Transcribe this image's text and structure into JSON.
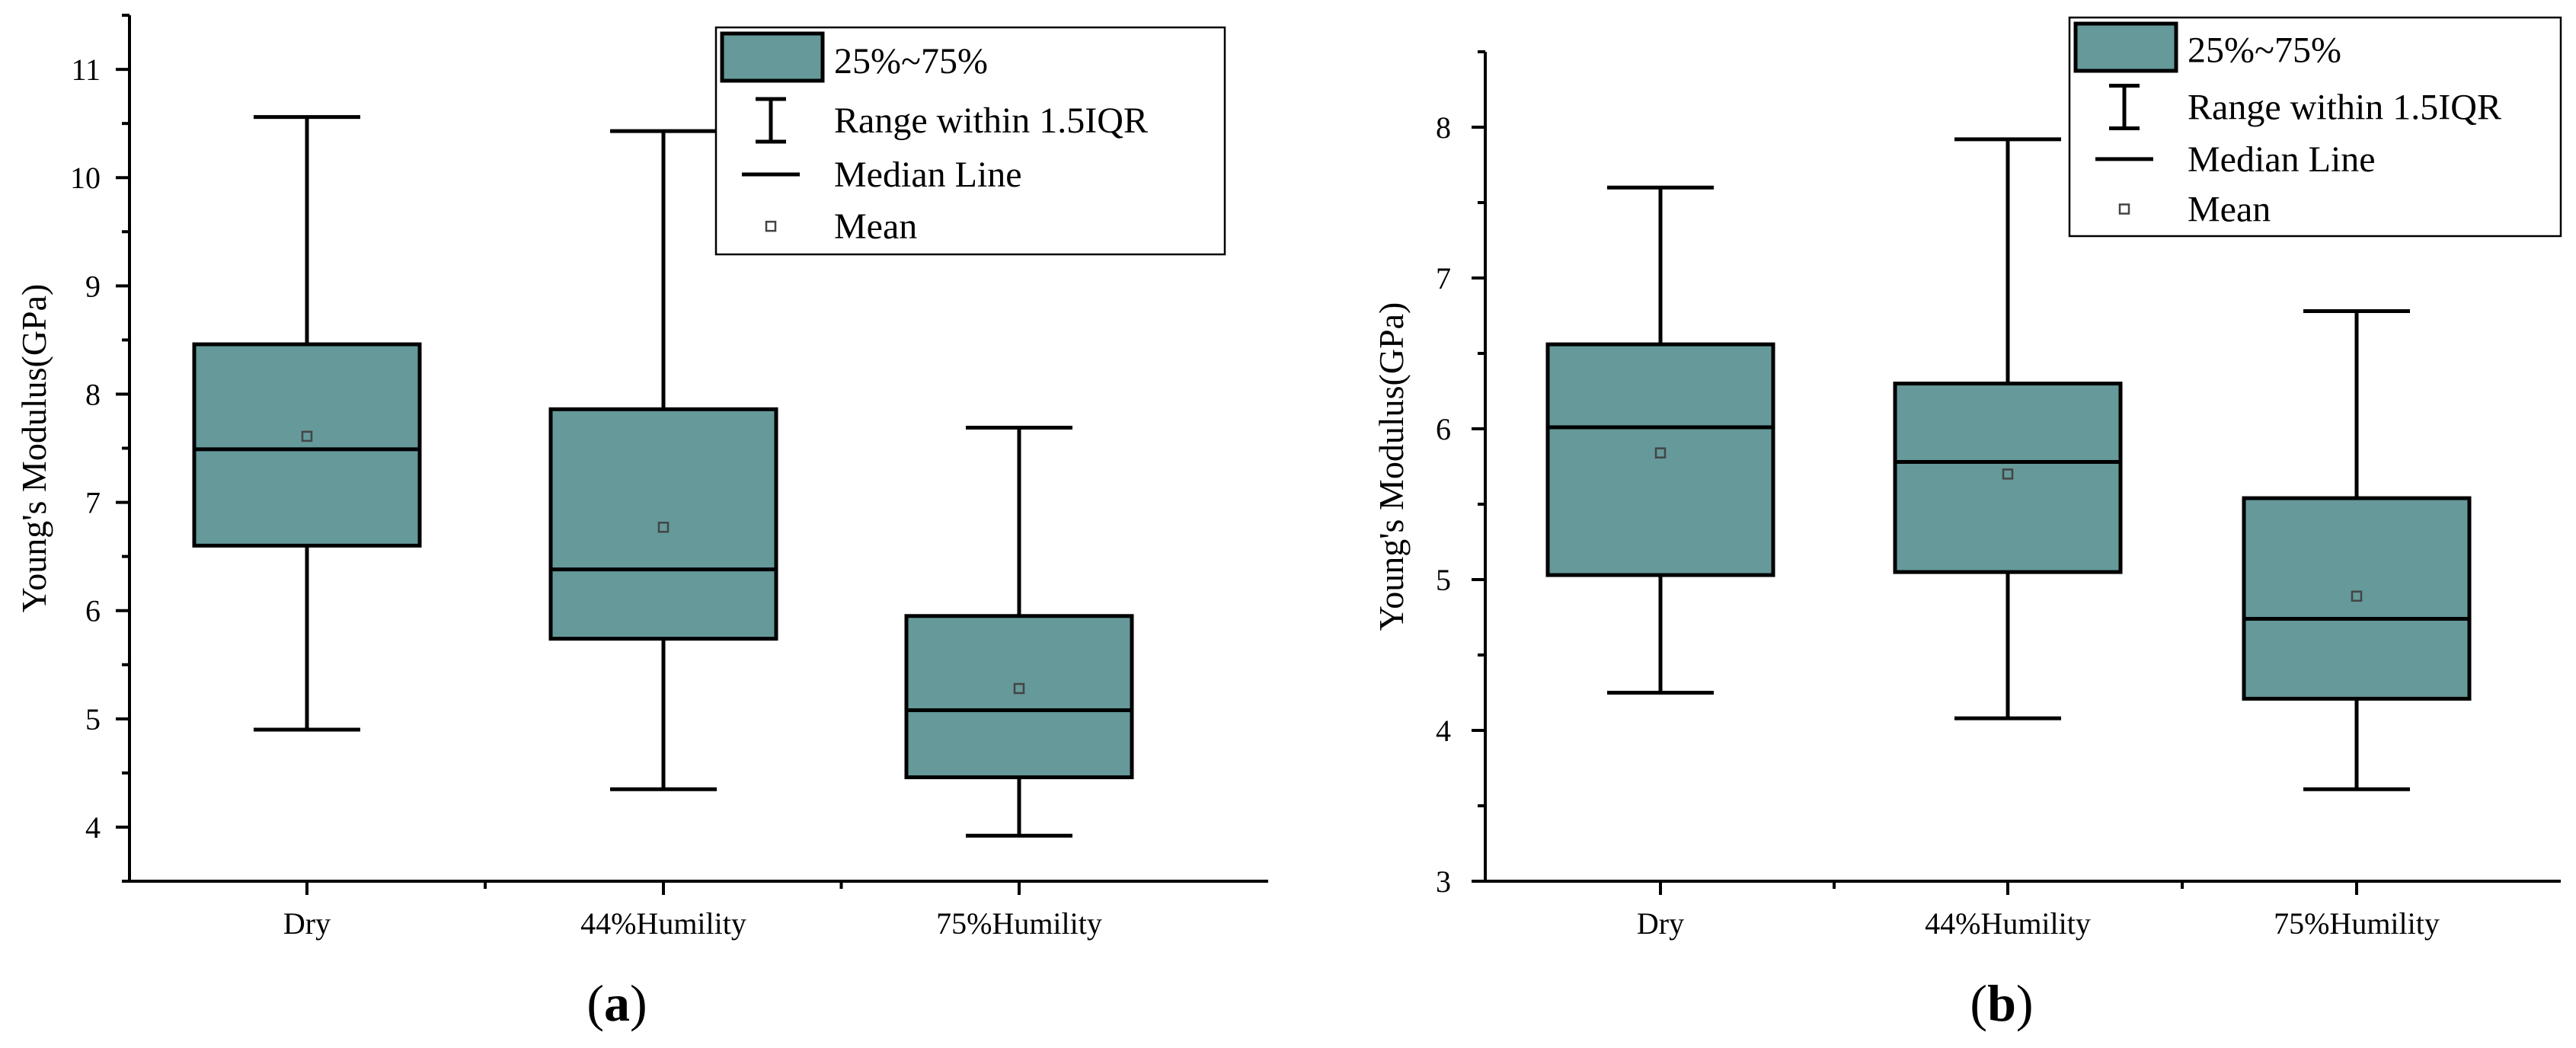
{
  "figure": {
    "box_color": "#65999A",
    "legend": {
      "box": "25%~75%",
      "range": "Range within 1.5IQR",
      "median": "Median Line",
      "mean": "Mean"
    }
  },
  "chart_data": [
    {
      "type": "box",
      "panel_label": {
        "open": "(",
        "letter": "a",
        "close": ")"
      },
      "ylabel": "Young's Modulus(GPa)",
      "xlabel": "",
      "ylim": [
        3.5,
        11.5
      ],
      "yticks": [
        4,
        5,
        6,
        7,
        8,
        9,
        10,
        11
      ],
      "categories": [
        "Dry",
        "44%Humility",
        "75%Humility"
      ],
      "boxes": [
        {
          "whisker_low": 4.9,
          "q1": 6.6,
          "median": 7.49,
          "q3": 8.46,
          "whisker_high": 10.56,
          "mean": 7.61
        },
        {
          "whisker_low": 4.35,
          "q1": 5.74,
          "median": 6.38,
          "q3": 7.86,
          "whisker_high": 10.43,
          "mean": 6.77
        },
        {
          "whisker_low": 3.92,
          "q1": 4.46,
          "median": 5.08,
          "q3": 5.95,
          "whisker_high": 7.69,
          "mean": 5.28
        }
      ],
      "legend_position": "top-right"
    },
    {
      "type": "box",
      "panel_label": {
        "open": "(",
        "letter": "b",
        "close": ")"
      },
      "ylabel": "Young's Modulus(GPa)",
      "xlabel": "",
      "ylim": [
        3,
        8.5
      ],
      "yticks": [
        3,
        4,
        5,
        6,
        7,
        8
      ],
      "categories": [
        "Dry",
        "44%Humility",
        "75%Humility"
      ],
      "boxes": [
        {
          "whisker_low": 4.25,
          "q1": 5.03,
          "median": 6.01,
          "q3": 6.56,
          "whisker_high": 7.6,
          "mean": 5.84
        },
        {
          "whisker_low": 4.08,
          "q1": 5.05,
          "median": 5.78,
          "q3": 6.3,
          "whisker_high": 7.92,
          "mean": 5.7
        },
        {
          "whisker_low": 3.61,
          "q1": 4.21,
          "median": 4.74,
          "q3": 5.54,
          "whisker_high": 6.78,
          "mean": 4.89
        }
      ],
      "legend_position": "top-right"
    }
  ]
}
